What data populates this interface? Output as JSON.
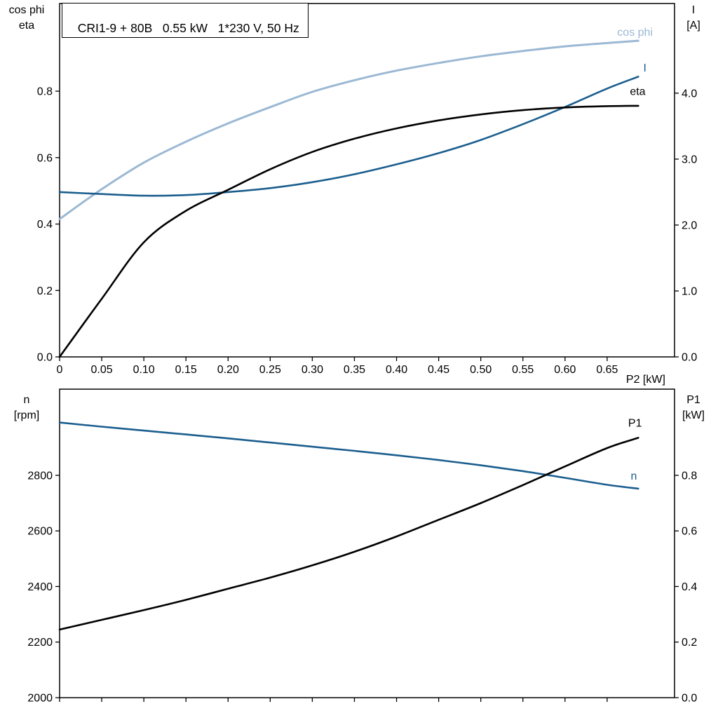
{
  "chart_data": [
    {
      "type": "line",
      "title": "CRI1-9 + 80B   0.55 kW   1*230 V, 50 Hz",
      "xlabel": "P2 [kW]",
      "ylabel_left": [
        "cos phi",
        "eta"
      ],
      "ylabel_right": [
        "I",
        "[A]"
      ],
      "grid": false,
      "x_axis": {
        "min": 0,
        "max": 0.73,
        "ticks": [
          0,
          0.05,
          0.1,
          0.15,
          0.2,
          0.25,
          0.3,
          0.35,
          0.4,
          0.45,
          0.5,
          0.55,
          0.6,
          0.65
        ],
        "tick_labels": [
          "0",
          "0.05",
          "0.10",
          "0.15",
          "0.20",
          "0.25",
          "0.30",
          "0.35",
          "0.40",
          "0.45",
          "0.50",
          "0.55",
          "0.60",
          "0.65"
        ],
        "show_tick_labels": true
      },
      "y_left": {
        "min": 0,
        "max": 1.064,
        "ticks": [
          0,
          0.2,
          0.4,
          0.6,
          0.8
        ],
        "tick_labels": [
          "0.0",
          "0.2",
          "0.4",
          "0.6",
          "0.8"
        ]
      },
      "y_right": {
        "min": 0,
        "max": 5.36,
        "ticks": [
          0,
          1,
          2,
          3,
          4
        ],
        "tick_labels": [
          "0.0",
          "1.0",
          "2.0",
          "3.0",
          "4.0"
        ]
      },
      "x": [
        0,
        0.05,
        0.1,
        0.15,
        0.2,
        0.25,
        0.3,
        0.35,
        0.4,
        0.45,
        0.5,
        0.55,
        0.6,
        0.65,
        0.687
      ],
      "series": [
        {
          "name": "cos phi",
          "axis": "left",
          "color": "#9bb8d4",
          "width": 3,
          "y": [
            0.415,
            0.505,
            0.585,
            0.648,
            0.703,
            0.752,
            0.798,
            0.833,
            0.862,
            0.885,
            0.905,
            0.921,
            0.935,
            0.945,
            0.952
          ],
          "label_at": {
            "x": 0.662,
            "y": 0.967
          }
        },
        {
          "name": "I",
          "axis": "right",
          "color": "#1b5e8e",
          "width": 2.6,
          "y": [
            2.5,
            2.47,
            2.445,
            2.455,
            2.5,
            2.56,
            2.65,
            2.77,
            2.92,
            3.09,
            3.29,
            3.53,
            3.79,
            4.07,
            4.25
          ],
          "label_at": {
            "x": 0.693,
            "y": 4.33
          }
        },
        {
          "name": "eta",
          "axis": "left",
          "color": "#000000",
          "width": 2.6,
          "y": [
            0,
            0.175,
            0.345,
            0.44,
            0.503,
            0.565,
            0.617,
            0.657,
            0.688,
            0.712,
            0.73,
            0.743,
            0.751,
            0.755,
            0.756
          ],
          "label_at": {
            "x": 0.677,
            "y": 0.788
          }
        }
      ]
    },
    {
      "type": "line",
      "title": "",
      "xlabel": "",
      "ylabel_left": [
        "n",
        "[rpm]"
      ],
      "ylabel_right": [
        "P1",
        "[kW]"
      ],
      "grid": false,
      "x_axis": {
        "min": 0,
        "max": 0.73,
        "ticks": [
          0,
          0.05,
          0.1,
          0.15,
          0.2,
          0.25,
          0.3,
          0.35,
          0.4,
          0.45,
          0.5,
          0.55,
          0.6,
          0.65
        ],
        "tick_labels": [],
        "show_tick_labels": false
      },
      "y_left": {
        "min": 2000,
        "max": 3110,
        "ticks": [
          2000,
          2200,
          2400,
          2600,
          2800
        ],
        "tick_labels": [
          "2000",
          "2200",
          "2400",
          "2600",
          "2800"
        ]
      },
      "y_right": {
        "min": 0,
        "max": 1.11,
        "ticks": [
          0,
          0.2,
          0.4,
          0.6,
          0.8
        ],
        "tick_labels": [
          "0.0",
          "0.2",
          "0.4",
          "0.6",
          "0.8"
        ]
      },
      "x": [
        0,
        0.05,
        0.1,
        0.15,
        0.2,
        0.25,
        0.3,
        0.35,
        0.4,
        0.45,
        0.5,
        0.55,
        0.6,
        0.65,
        0.687
      ],
      "series": [
        {
          "name": "n",
          "axis": "left",
          "color": "#1b5e8e",
          "width": 2.6,
          "y": [
            2990,
            2975,
            2961,
            2947,
            2933,
            2918,
            2903,
            2888,
            2872,
            2855,
            2836,
            2815,
            2791,
            2766,
            2752
          ],
          "label_at": {
            "x": 0.678,
            "y": 2785
          }
        },
        {
          "name": "P1",
          "axis": "right",
          "color": "#000000",
          "width": 2.6,
          "y": [
            0.245,
            0.28,
            0.315,
            0.352,
            0.392,
            0.432,
            0.476,
            0.525,
            0.58,
            0.64,
            0.7,
            0.765,
            0.832,
            0.898,
            0.935
          ],
          "label_at": {
            "x": 0.675,
            "y": 0.975
          }
        }
      ]
    }
  ]
}
